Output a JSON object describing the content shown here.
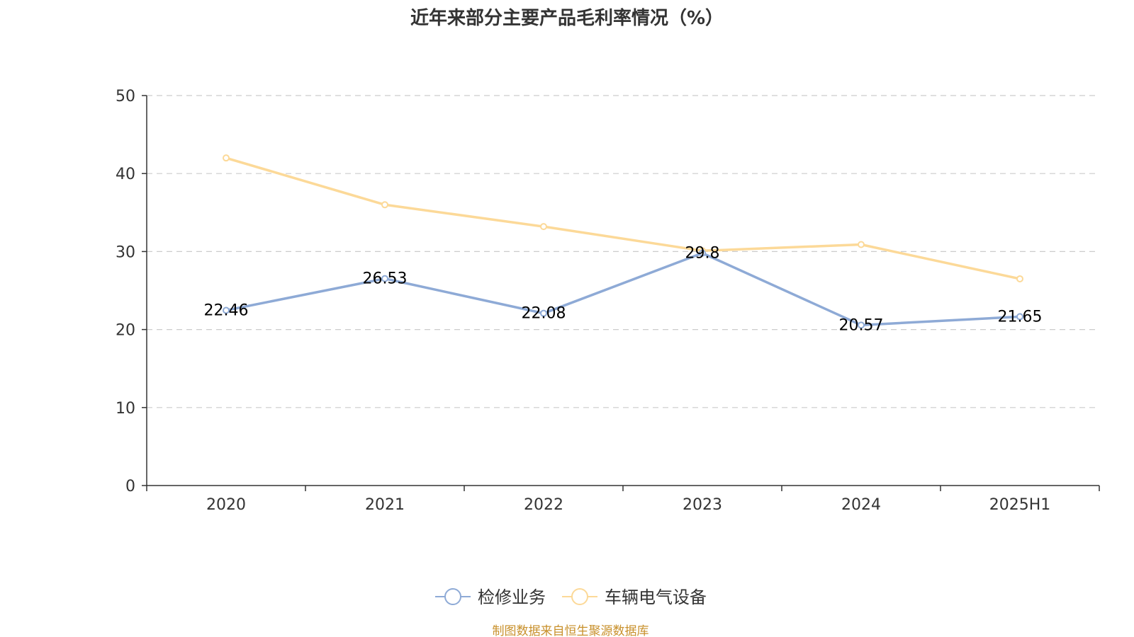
{
  "chart_data": {
    "type": "line",
    "title": "近年来部分主要产品毛利率情况（%）",
    "categories": [
      "2020",
      "2021",
      "2022",
      "2023",
      "2024",
      "2025H1"
    ],
    "ylim": [
      0,
      50
    ],
    "yticks": [
      0,
      10,
      20,
      30,
      40,
      50
    ],
    "grid": true,
    "legend_position": "bottom-center",
    "series": [
      {
        "name": "检修业务",
        "color": "#8eaad6",
        "values": [
          22.46,
          26.53,
          22.08,
          29.8,
          20.57,
          21.65
        ],
        "labels": [
          "22.46",
          "26.53",
          "22.08",
          "29.8",
          "20.57",
          "21.65"
        ]
      },
      {
        "name": "车辆电气设备",
        "color": "#fcd998",
        "values": [
          42.0,
          36.0,
          33.2,
          30.1,
          30.9,
          26.5
        ]
      }
    ]
  },
  "source": "制图数据来自恒生聚源数据库"
}
